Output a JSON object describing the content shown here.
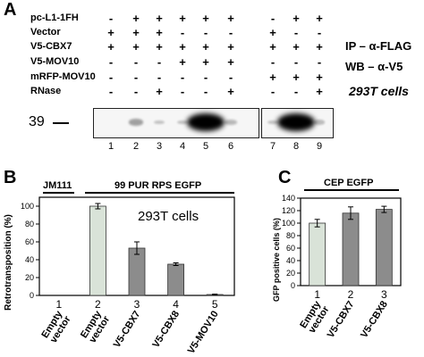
{
  "panel_a": {
    "letter": "A",
    "rows": [
      {
        "label": "pc-L1-1FH",
        "left": [
          "-",
          "+",
          "+",
          "+",
          "+",
          "+"
        ],
        "right": [
          "-",
          "+",
          "+"
        ]
      },
      {
        "label": "Vector",
        "left": [
          "+",
          "+",
          "+",
          "-",
          "-",
          "-"
        ],
        "right": [
          "+",
          "-",
          "-"
        ]
      },
      {
        "label": "V5-CBX7",
        "left": [
          "+",
          "+",
          "+",
          "+",
          "+",
          "+"
        ],
        "right": [
          "+",
          "+",
          "+"
        ]
      },
      {
        "label": "V5-MOV10",
        "left": [
          "-",
          "-",
          "-",
          "+",
          "+",
          "+"
        ],
        "right": [
          "-",
          "-",
          "-"
        ]
      },
      {
        "label": "mRFP-MOV10",
        "left": [
          "-",
          "-",
          "-",
          "-",
          "-",
          "-"
        ],
        "right": [
          "+",
          "+",
          "+"
        ]
      },
      {
        "label": "RNase",
        "left": [
          "-",
          "-",
          "+",
          "-",
          "-",
          "+"
        ],
        "right": [
          "-",
          "-",
          "+"
        ]
      }
    ],
    "ip_label": "IP – α-FLAG",
    "wb_label": "WB – α-V5",
    "cell_label": "293T cells",
    "mw_marker": "39",
    "lane_numbers": [
      "1",
      "2",
      "3",
      "4",
      "5",
      "6",
      "7",
      "8",
      "9"
    ],
    "band_intensity": [
      0,
      0.2,
      0.05,
      0.05,
      1.0,
      0.1,
      0.05,
      1.0,
      0.08
    ]
  },
  "panel_b": {
    "letter": "B",
    "group_left": "JM111",
    "group_right": "99 PUR RPS EGFP",
    "inset": "293T cells",
    "chart_data": {
      "type": "bar",
      "ylabel": "Retrotransposition (%)",
      "ylim": [
        0,
        110
      ],
      "yticks": [
        "0",
        "20",
        "40",
        "60",
        "80",
        "100"
      ],
      "categories": [
        "Empty vector",
        "Empty vector",
        "V5-CBX7",
        "V5-CBX8",
        "V5-MOV10"
      ],
      "numbers": [
        "1",
        "2",
        "3",
        "4",
        "5"
      ],
      "values": [
        0,
        100,
        53,
        35,
        1
      ],
      "errors": [
        0,
        3,
        7,
        1.5,
        0.5
      ],
      "colors": [
        "#d9e3d8",
        "#d9e3d8",
        "#8c8c8c",
        "#8c8c8c",
        "#8c8c8c"
      ]
    }
  },
  "panel_c": {
    "letter": "C",
    "group_label": "CEP EGFP",
    "chart_data": {
      "type": "bar",
      "ylabel": "GFP positive cells (%)",
      "ylim": [
        0,
        140
      ],
      "yticks": [
        "0",
        "20",
        "40",
        "60",
        "80",
        "100",
        "120",
        "140"
      ],
      "categories": [
        "Empty vector",
        "V5-CBX7",
        "V5-CBX8"
      ],
      "numbers": [
        "1",
        "2",
        "3"
      ],
      "values": [
        100,
        116,
        122
      ],
      "errors": [
        6,
        10,
        5
      ],
      "colors": [
        "#d9e3d8",
        "#8c8c8c",
        "#8c8c8c"
      ]
    }
  }
}
